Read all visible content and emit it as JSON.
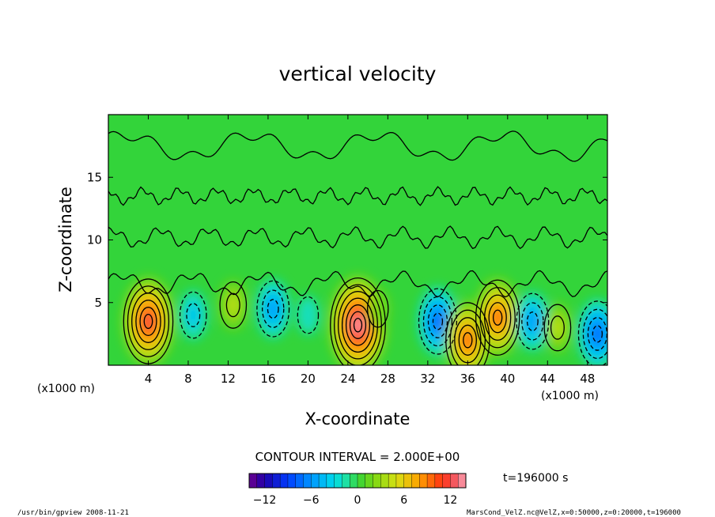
{
  "chart_data": {
    "type": "heatmap",
    "title": "vertical velocity",
    "xlabel": "X-coordinate",
    "ylabel": "Z-coordinate",
    "x_unit": "(x1000 m)",
    "z_unit": "(x1000 m)",
    "xlim": [
      0,
      50
    ],
    "ylim": [
      0,
      20
    ],
    "xticks": [
      4,
      8,
      12,
      16,
      20,
      24,
      28,
      32,
      36,
      40,
      44,
      48
    ],
    "yticks": [
      5,
      10,
      15
    ],
    "contour_interval": "CONTOUR INTERVAL = 2.000E+00",
    "time": "t=196000 s",
    "colorbar": {
      "min": -14,
      "max": 14,
      "step": 1,
      "ticks": [
        -12,
        -6,
        0,
        6,
        12
      ]
    },
    "features": [
      {
        "x": 4,
        "z": 3.5,
        "value": 12,
        "sign": "updraft"
      },
      {
        "x": 8.5,
        "z": 4.0,
        "value": -4,
        "sign": "downdraft"
      },
      {
        "x": 12.5,
        "z": 4.8,
        "value": 4,
        "sign": "updraft"
      },
      {
        "x": 16.5,
        "z": 4.5,
        "value": -6,
        "sign": "downdraft"
      },
      {
        "x": 20,
        "z": 4.0,
        "value": -2,
        "sign": "downdraft"
      },
      {
        "x": 25,
        "z": 3.2,
        "value": 14,
        "sign": "updraft"
      },
      {
        "x": 27,
        "z": 4.5,
        "value": 2,
        "sign": "updraft"
      },
      {
        "x": 33,
        "z": 3.5,
        "value": -8,
        "sign": "downdraft"
      },
      {
        "x": 36,
        "z": 2.0,
        "value": 10,
        "sign": "updraft"
      },
      {
        "x": 39,
        "z": 3.8,
        "value": 10,
        "sign": "updraft"
      },
      {
        "x": 42.5,
        "z": 3.5,
        "value": -6,
        "sign": "downdraft"
      },
      {
        "x": 45,
        "z": 3.0,
        "value": 4,
        "sign": "updraft"
      },
      {
        "x": 49,
        "z": 2.5,
        "value": -8,
        "sign": "downdraft"
      }
    ]
  },
  "footer": {
    "left": "/usr/bin/gpview   2008-11-21",
    "right": "MarsCond_VelZ.nc@VelZ,x=0:50000,z=0:20000,t=196000"
  }
}
